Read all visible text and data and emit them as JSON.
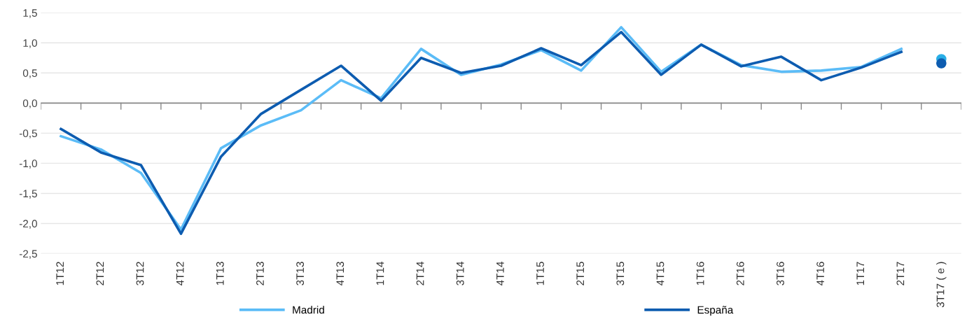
{
  "chart_data": {
    "type": "line",
    "categories": [
      "1T12",
      "2T12",
      "3T12",
      "4T12",
      "1T13",
      "2T13",
      "3T13",
      "4T13",
      "1T14",
      "2T14",
      "3T14",
      "4T14",
      "1T15",
      "2T15",
      "3T15",
      "4T15",
      "1T16",
      "2T16",
      "3T16",
      "4T16",
      "1T17",
      "2T17",
      "3T17 ( e )"
    ],
    "series": [
      {
        "name": "Madrid",
        "color": "#5bbcf7",
        "values": [
          -0.55,
          -0.77,
          -1.16,
          -2.1,
          -0.75,
          -0.37,
          -0.12,
          0.38,
          0.08,
          0.9,
          0.47,
          0.64,
          0.88,
          0.54,
          1.26,
          0.52,
          0.97,
          0.63,
          0.52,
          0.54,
          0.6,
          0.9,
          null
        ]
      },
      {
        "name": "España",
        "color": "#0d5cb0",
        "values": [
          -0.43,
          -0.82,
          -1.03,
          -2.17,
          -0.89,
          -0.18,
          0.22,
          0.62,
          0.04,
          0.75,
          0.5,
          0.62,
          0.91,
          0.63,
          1.18,
          0.47,
          0.97,
          0.61,
          0.77,
          0.38,
          0.59,
          0.85,
          null
        ]
      },
      {
        "type": "scatter",
        "marker": "circle",
        "color": "#29aee6",
        "values": [
          null,
          null,
          null,
          null,
          null,
          null,
          null,
          null,
          null,
          null,
          null,
          null,
          null,
          null,
          null,
          null,
          null,
          null,
          null,
          null,
          null,
          null,
          0.73
        ]
      },
      {
        "type": "scatter",
        "marker": "circle",
        "color": "#0d5cb0",
        "values": [
          null,
          null,
          null,
          null,
          null,
          null,
          null,
          null,
          null,
          null,
          null,
          null,
          null,
          null,
          null,
          null,
          null,
          null,
          null,
          null,
          null,
          null,
          0.66
        ]
      }
    ],
    "ylim": [
      -2.5,
      1.5
    ],
    "yticks": [
      {
        "value": -2.5,
        "label": "-2,5"
      },
      {
        "value": -2.0,
        "label": "-2,0"
      },
      {
        "value": -1.5,
        "label": "-1,5"
      },
      {
        "value": -1.0,
        "label": "-1,0"
      },
      {
        "value": -0.5,
        "label": "-0,5"
      },
      {
        "value": 0.0,
        "label": "0,0"
      },
      {
        "value": 0.5,
        "label": "0,5"
      },
      {
        "value": 1.0,
        "label": "1,0"
      },
      {
        "value": 1.5,
        "label": "1,5"
      }
    ],
    "grid": "y",
    "legend": "bottom",
    "line_style": "solid"
  }
}
